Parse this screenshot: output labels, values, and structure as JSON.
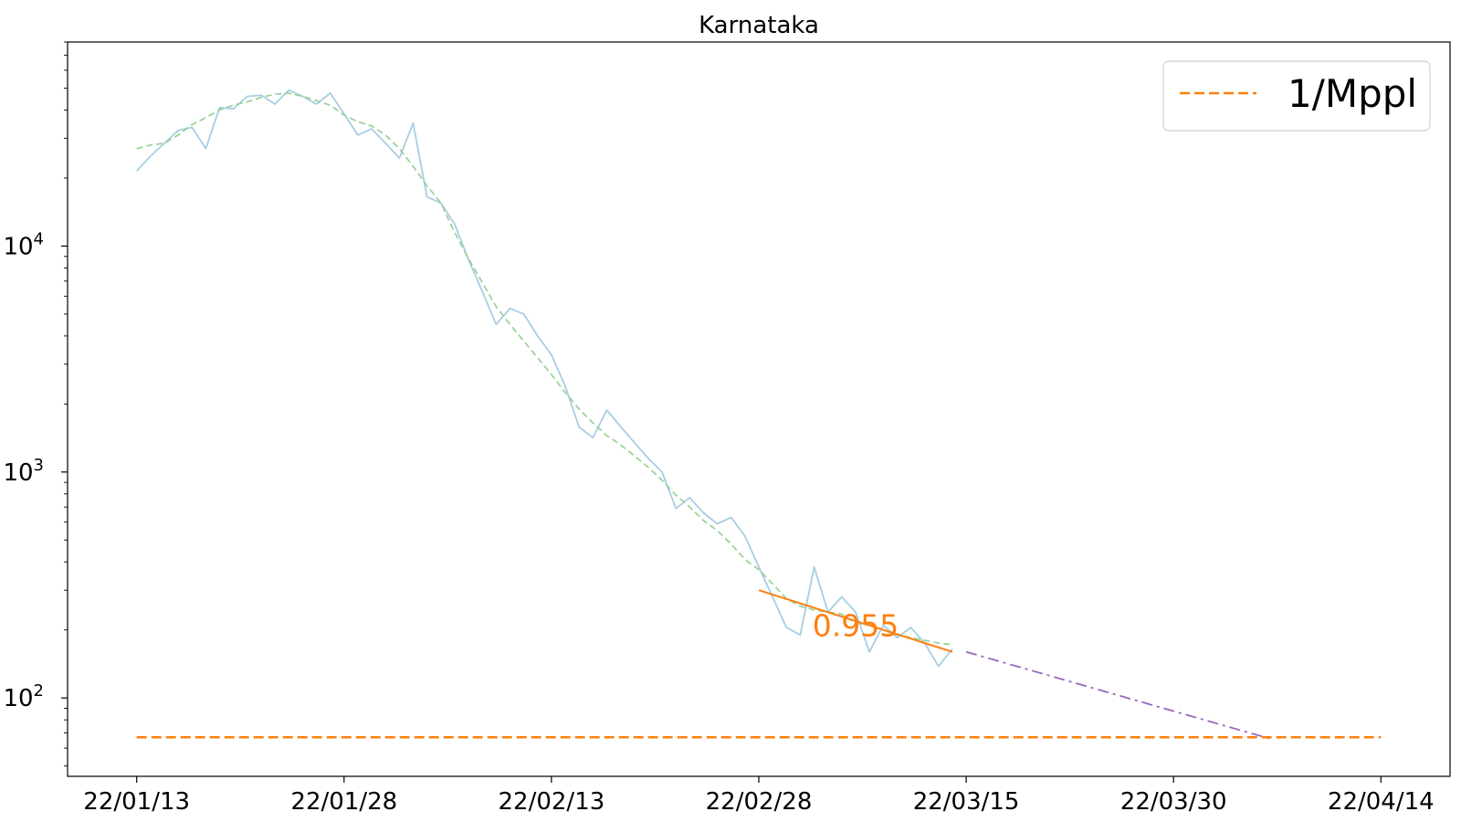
{
  "chart_data": {
    "type": "line",
    "title": "Karnataka",
    "xlabel": "",
    "ylabel": "",
    "y_scale": "log",
    "x_tick_labels": [
      "22/01/13",
      "22/01/28",
      "22/02/13",
      "22/02/28",
      "22/03/15",
      "22/03/30",
      "22/04/14"
    ],
    "x_tick_dates": [
      "2022-01-13",
      "2022-01-28",
      "2022-02-12",
      "2022-02-27",
      "2022-03-14",
      "2022-03-29",
      "2022-04-13"
    ],
    "x_range": [
      "2022-01-08",
      "2022-04-18"
    ],
    "y_range": [
      45,
      80000
    ],
    "y_ticks": [
      {
        "value": 100,
        "base": "10",
        "exp": "2"
      },
      {
        "value": 1000,
        "base": "10",
        "exp": "3"
      },
      {
        "value": 10000,
        "base": "10",
        "exp": "4"
      }
    ],
    "series": [
      {
        "key": "daily",
        "color": "#a6cee3",
        "style": "solid",
        "start": "2022-01-13",
        "values": [
          21500,
          25000,
          28500,
          32500,
          33500,
          27000,
          41000,
          40500,
          46000,
          46500,
          42500,
          49000,
          46000,
          42500,
          47500,
          38500,
          31000,
          33000,
          28500,
          24500,
          35000,
          16500,
          15500,
          12500,
          8700,
          6300,
          4500,
          5300,
          5000,
          4000,
          3300,
          2400,
          1580,
          1420,
          1880,
          1590,
          1350,
          1150,
          1000,
          690,
          770,
          660,
          590,
          630,
          520,
          380,
          280,
          205,
          190,
          380,
          240,
          280,
          240,
          160,
          210,
          185,
          205,
          175,
          138,
          165
        ]
      },
      {
        "key": "smoothed",
        "color": "#9ed29a",
        "style": "dashed",
        "start": "2022-01-13",
        "values": [
          27000,
          28000,
          28500,
          31000,
          34500,
          37000,
          40000,
          42000,
          43500,
          45500,
          47000,
          47500,
          46000,
          44000,
          42000,
          38000,
          35500,
          34000,
          31000,
          27000,
          22500,
          18500,
          15500,
          11500,
          8800,
          6900,
          5400,
          4500,
          3800,
          3200,
          2700,
          2250,
          1900,
          1650,
          1450,
          1320,
          1180,
          1050,
          920,
          790,
          700,
          610,
          550,
          480,
          410,
          370,
          320,
          275,
          255,
          245,
          240,
          235,
          215,
          210,
          200,
          190,
          185,
          180,
          175,
          172
        ]
      },
      {
        "key": "fit",
        "color": "#ff7f0e",
        "style": "solid",
        "x": [
          "2022-02-27",
          "2022-03-13"
        ],
        "values": [
          300,
          160
        ]
      },
      {
        "key": "projection",
        "color": "#9467bd",
        "style": "dashdot",
        "x": [
          "2022-03-14",
          "2022-04-05"
        ],
        "values": [
          160,
          66
        ]
      },
      {
        "key": "threshold",
        "name": "1/Mppl",
        "color": "#ff7f0e",
        "style": "dashed",
        "x": [
          "2022-01-13",
          "2022-04-13"
        ],
        "values": [
          67,
          67
        ]
      }
    ],
    "annotations": [
      {
        "text": "0.955",
        "x": "2022-03-06",
        "y": 210,
        "color": "#ff7f0e"
      }
    ],
    "legend": {
      "position": "top-right",
      "entries": [
        "1/Mppl"
      ]
    }
  }
}
